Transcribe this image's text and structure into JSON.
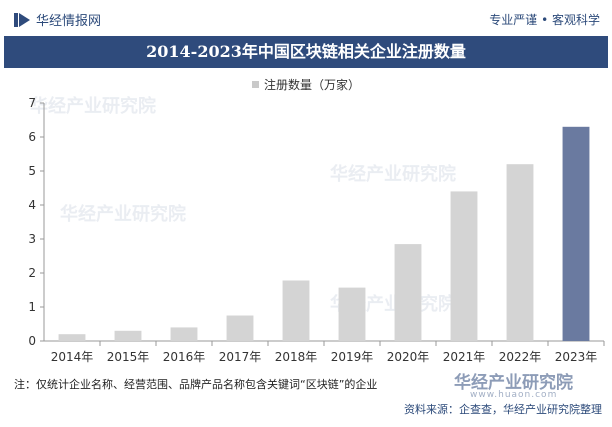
{
  "header": {
    "brand": "华经情报网",
    "slogan": "专业严谨 • 客观科学"
  },
  "chart_data": {
    "type": "bar",
    "title": "2014-2023年中国区块链相关企业注册数量",
    "categories": [
      "2014年",
      "2015年",
      "2016年",
      "2017年",
      "2018年",
      "2019年",
      "2020年",
      "2021年",
      "2022年",
      "2023年"
    ],
    "series": [
      {
        "name": "注册数量（万家）",
        "values": [
          0.2,
          0.3,
          0.4,
          0.75,
          1.78,
          1.57,
          2.85,
          4.4,
          5.2,
          6.3
        ]
      }
    ],
    "ylim": [
      0,
      7
    ],
    "yticks": [
      0,
      1,
      2,
      3,
      4,
      5,
      6,
      7
    ],
    "grid": false,
    "legend": "top-center",
    "colors": {
      "default": "#d4d4d4",
      "highlight": "#6a7aa0",
      "title_band": "#2f4b7c"
    },
    "highlight_index": 9
  },
  "footer": {
    "note": "注：仅统计企业名称、经营范围、品牌产品名称包含关键词“区块链”的企业",
    "source": "资料来源：企查查，华经产业研究院整理",
    "watermark": "华经产业研究院",
    "watermark_url": "www.huaon.com"
  }
}
